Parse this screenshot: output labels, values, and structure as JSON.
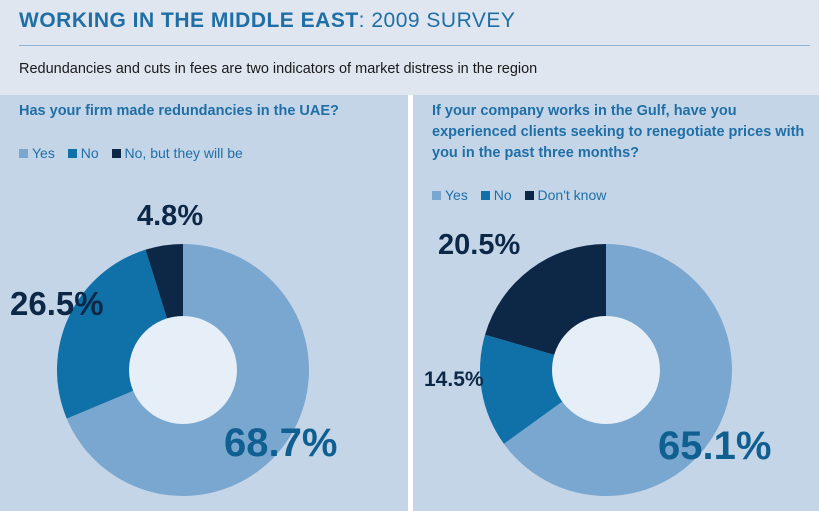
{
  "header": {
    "title_bold": "WORKING IN THE MIDDLE EAST",
    "title_light": ": 2009 SURVEY",
    "subtitle": "Redundancies and cuts in fees are two indicators of market distress in the region"
  },
  "colors": {
    "yes": "#7aa7cf",
    "no": "#1070a8",
    "third": "#0d2747",
    "hole": "#e6eef7"
  },
  "chart_data": [
    {
      "type": "pie",
      "variant": "donut",
      "title": "Has your firm made redundancies in the UAE?",
      "categories": [
        "Yes",
        "No",
        "No, but they will be"
      ],
      "values": [
        68.7,
        26.5,
        4.8
      ],
      "labels": [
        "68.7%",
        "26.5%",
        "4.8%"
      ],
      "start": "top",
      "direction": "clockwise"
    },
    {
      "type": "pie",
      "variant": "donut",
      "title": "If your company works in the Gulf, have you experienced clients seeking to renegotiate prices with you in the past three months?",
      "categories": [
        "Yes",
        "No",
        "Don't know"
      ],
      "values": [
        65.1,
        14.5,
        20.5
      ],
      "labels": [
        "65.1%",
        "14.5%",
        "20.5%"
      ],
      "start": "top",
      "direction": "clockwise"
    }
  ]
}
